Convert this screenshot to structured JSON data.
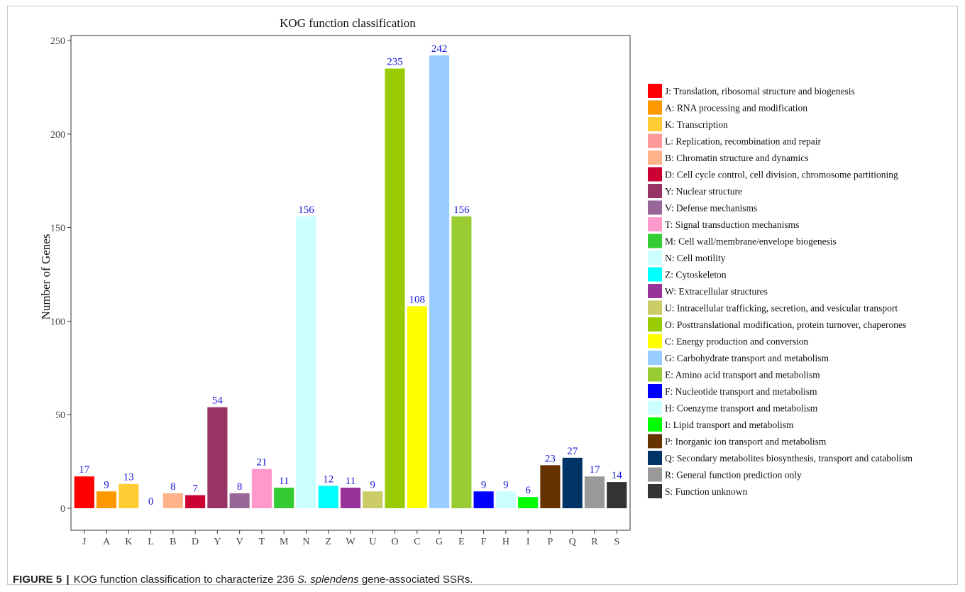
{
  "figure": {
    "label": "FIGURE 5",
    "separator": "|",
    "caption_prefix": "KOG function classification to characterize 236",
    "caption_species": "S. splendens",
    "caption_suffix": "gene-associated SSRs."
  },
  "chart_data": {
    "type": "bar",
    "title": "KOG function classification",
    "xlabel": "",
    "ylabel": "Number of Genes",
    "ylim": [
      0,
      250
    ],
    "yticks": [
      0,
      50,
      100,
      150,
      200,
      250
    ],
    "grid": false,
    "legend_position": "right",
    "categories": [
      "J",
      "A",
      "K",
      "L",
      "B",
      "D",
      "Y",
      "V",
      "T",
      "M",
      "N",
      "Z",
      "W",
      "U",
      "O",
      "C",
      "G",
      "E",
      "F",
      "H",
      "I",
      "P",
      "Q",
      "R",
      "S"
    ],
    "values": [
      17,
      9,
      13,
      0,
      8,
      7,
      54,
      8,
      21,
      11,
      156,
      12,
      11,
      9,
      235,
      108,
      242,
      156,
      9,
      9,
      6,
      23,
      27,
      17,
      14
    ],
    "data_label_color": "#1515d6",
    "colors": [
      "#ff0000",
      "#ff9900",
      "#ffcc33",
      "#ff9999",
      "#ffb38a",
      "#cc0033",
      "#993366",
      "#996699",
      "#ff99cc",
      "#33cc33",
      "#ccffff",
      "#00ffff",
      "#993399",
      "#cccc66",
      "#99cc00",
      "#ffff00",
      "#99ccff",
      "#99cc33",
      "#0000ff",
      "#ccffff",
      "#00ff00",
      "#663300",
      "#003366",
      "#999999",
      "#333333"
    ],
    "legend": [
      "J: Translation, ribosomal structure and biogenesis",
      "A: RNA processing and modification",
      "K: Transcription",
      "L: Replication, recombination and repair",
      "B: Chromatin structure and dynamics",
      "D: Cell cycle control, cell division, chromosome partitioning",
      "Y: Nuclear structure",
      "V: Defense mechanisms",
      "T: Signal transduction mechanisms",
      "M: Cell wall/membrane/envelope biogenesis",
      "N: Cell motility",
      "Z: Cytoskeleton",
      "W: Extracellular structures",
      "U: Intracellular trafficking, secretion, and vesicular transport",
      "O: Posttranslational modification, protein turnover, chaperones",
      "C: Energy production and conversion",
      "G: Carbohydrate transport and metabolism",
      "E: Amino acid transport and metabolism",
      "F: Nucleotide transport and metabolism",
      "H: Coenzyme transport and metabolism",
      "I: Lipid transport and metabolism",
      "P: Inorganic ion transport and metabolism",
      "Q: Secondary metabolites biosynthesis, transport and catabolism",
      "R: General function prediction only",
      "S: Function unknown"
    ]
  }
}
